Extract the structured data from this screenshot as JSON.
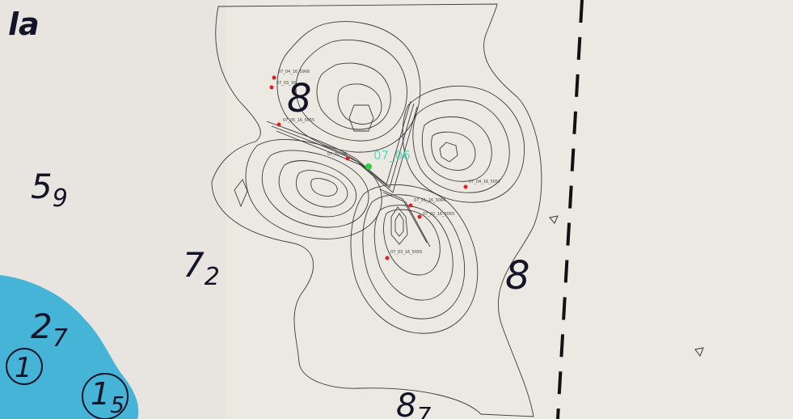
{
  "map": {
    "depths": [
      {
        "main": "la",
        "sub": ""
      },
      {
        "main": "8",
        "sub": ""
      },
      {
        "main": "5",
        "sub": "9"
      },
      {
        "main": "7",
        "sub": "2"
      },
      {
        "main": "8",
        "sub": ""
      },
      {
        "main": "2",
        "sub": "7"
      },
      {
        "main": "1",
        "sub": "5"
      },
      {
        "main": "8",
        "sub": "7"
      },
      {
        "main": "1",
        "sub": ""
      }
    ],
    "center_point": {
      "label": "07_06"
    },
    "points": [
      {
        "label": "07_04_16_5906"
      },
      {
        "label": "07_03_16"
      },
      {
        "label": "07_05_16_5055"
      },
      {
        "label": "07_02_06"
      },
      {
        "label": "07_04_16_5057"
      },
      {
        "label": "07_01_16_5064"
      },
      {
        "label": "07_02_16_5055"
      },
      {
        "label": "07_03_16_5055"
      }
    ],
    "colors": {
      "paper": "#ece9e3",
      "water": "#46b4d7",
      "contour": "#3a3a3a",
      "sample_point": "#e02020",
      "center_point": "#30d040",
      "center_label": "#5fd9c0",
      "boundary": "#111111"
    }
  }
}
